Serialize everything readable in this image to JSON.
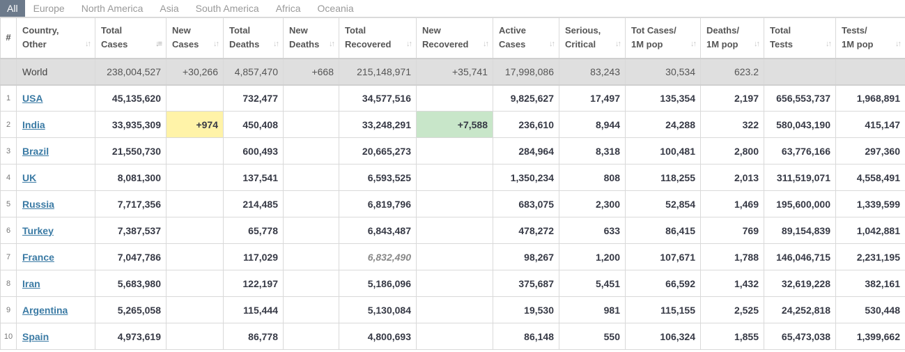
{
  "tabs": [
    "All",
    "Europe",
    "North America",
    "Asia",
    "South America",
    "Africa",
    "Oceania"
  ],
  "headers": [
    "#",
    "Country,\nOther",
    "Total\nCases",
    "New\nCases",
    "Total\nDeaths",
    "New\nDeaths",
    "Total\nRecovered",
    "New\nRecovered",
    "Active\nCases",
    "Serious,\nCritical",
    "Tot Cases/\n1M pop",
    "Deaths/\n1M pop",
    "Total\nTests",
    "Tests/\n1M pop"
  ],
  "sort_glyph": "↓↑",
  "sort_active_glyph": "↓≡",
  "world": [
    "",
    "World",
    "238,004,527",
    "+30,266",
    "4,857,470",
    "+668",
    "215,148,971",
    "+35,741",
    "17,998,086",
    "83,243",
    "30,534",
    "623.2",
    "",
    ""
  ],
  "rows": [
    [
      "1",
      "USA",
      "45,135,620",
      "",
      "732,477",
      "",
      "34,577,516",
      "",
      "9,825,627",
      "17,497",
      "135,354",
      "2,197",
      "656,553,737",
      "1,968,891"
    ],
    [
      "2",
      "India",
      "33,935,309",
      "+974",
      "450,408",
      "",
      "33,248,291",
      "+7,588",
      "236,610",
      "8,944",
      "24,288",
      "322",
      "580,043,190",
      "415,147"
    ],
    [
      "3",
      "Brazil",
      "21,550,730",
      "",
      "600,493",
      "",
      "20,665,273",
      "",
      "284,964",
      "8,318",
      "100,481",
      "2,800",
      "63,776,166",
      "297,360"
    ],
    [
      "4",
      "UK",
      "8,081,300",
      "",
      "137,541",
      "",
      "6,593,525",
      "",
      "1,350,234",
      "808",
      "118,255",
      "2,013",
      "311,519,071",
      "4,558,491"
    ],
    [
      "5",
      "Russia",
      "7,717,356",
      "",
      "214,485",
      "",
      "6,819,796",
      "",
      "683,075",
      "2,300",
      "52,854",
      "1,469",
      "195,600,000",
      "1,339,599"
    ],
    [
      "6",
      "Turkey",
      "7,387,537",
      "",
      "65,778",
      "",
      "6,843,487",
      "",
      "478,272",
      "633",
      "86,415",
      "769",
      "89,154,839",
      "1,042,881"
    ],
    [
      "7",
      "France",
      "7,047,786",
      "",
      "117,029",
      "",
      "6,832,490",
      "",
      "98,267",
      "1,200",
      "107,671",
      "1,788",
      "146,046,715",
      "2,231,195"
    ],
    [
      "8",
      "Iran",
      "5,683,980",
      "",
      "122,197",
      "",
      "5,186,096",
      "",
      "375,687",
      "5,451",
      "66,592",
      "1,432",
      "32,619,228",
      "382,161"
    ],
    [
      "9",
      "Argentina",
      "5,265,058",
      "",
      "115,444",
      "",
      "5,130,084",
      "",
      "19,530",
      "981",
      "115,155",
      "2,525",
      "24,252,818",
      "530,448"
    ],
    [
      "10",
      "Spain",
      "4,973,619",
      "",
      "86,778",
      "",
      "4,800,693",
      "",
      "86,148",
      "550",
      "106,324",
      "1,855",
      "65,473,038",
      "1,399,662"
    ]
  ],
  "colors": {
    "new_cases_highlight": "#fff3a8",
    "new_recovered_highlight": "#c8e6c9",
    "link": "#3a7aa4",
    "active_tab": "#6c7a8b"
  }
}
